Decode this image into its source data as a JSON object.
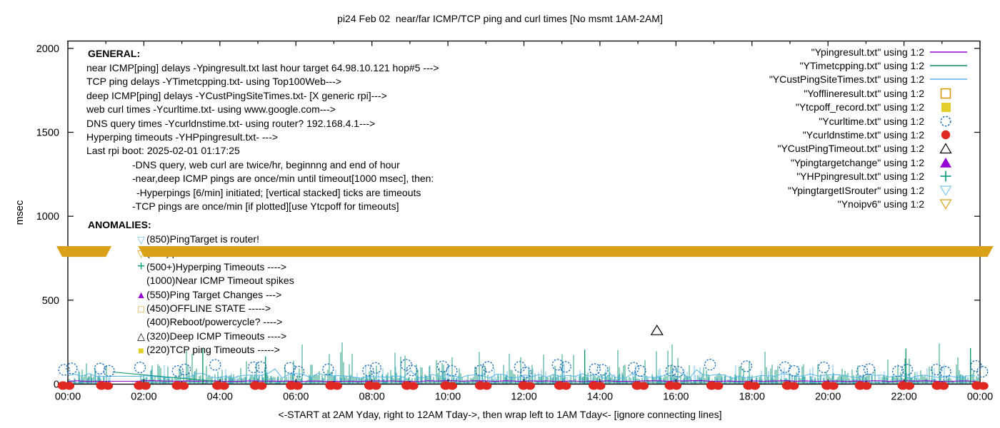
{
  "general": {
    "heading": "GENERAL:",
    "lines": [
      {
        "indent": 0,
        "text": "near ICMP[ping] delays -Ypingresult.txt last hour target 64.98.10.121 hop#5 --->"
      },
      {
        "indent": 0,
        "text": "TCP ping delays -YTimetcpping.txt- using Top100Web--->"
      },
      {
        "indent": 0,
        "text": "deep ICMP[ping] delays -YCustPingSiteTimes.txt- [X generic rpi]--->"
      },
      {
        "indent": 0,
        "text": "web curl times -Ycurltime.txt- using www.google.com--->"
      },
      {
        "indent": 0,
        "text": "DNS query times -Ycurldnstime.txt- using router? 192.168.4.1--->"
      },
      {
        "indent": 0,
        "text": "Hyperping timeouts -YHPpingresult.txt- --->"
      },
      {
        "indent": 0,
        "text": "Last rpi boot: 2025-02-01 01:17:25"
      },
      {
        "indent": 64,
        "text": "-DNS query, web curl are twice/hr, beginnng and end of hour"
      },
      {
        "indent": 64,
        "text": "-near,deep ICMP pings are once/min until timeout[1000 msec], then:"
      },
      {
        "indent": 70,
        "text": "-Hyperpings [6/min] initiated; [vertical stacked] ticks are timeouts"
      },
      {
        "indent": 64,
        "text": "-TCP pings are once/min [if plotted][use Ytcpoff for timeouts]"
      }
    ]
  },
  "anomalies": {
    "heading": "ANOMALIES:",
    "items": [
      {
        "marker": "tri-down-open",
        "color": "#79C7E8",
        "label": "(850)PingTarget is router!"
      },
      {
        "marker": "tri-down-open",
        "color": "#DAA017",
        "label": "(785)ipv6 failed --->"
      },
      {
        "marker": "plus",
        "color": "#009977",
        "label": "(500+)Hyperping Timeouts ---->"
      },
      {
        "marker": "none",
        "color": "#000000",
        "label": "(1000)Near ICMP Timeout spikes"
      },
      {
        "marker": "tri-up-filled",
        "color": "#9400D3",
        "label": "(550)Ping Target Changes --->"
      },
      {
        "marker": "square-open",
        "color": "#DB9500",
        "label": "(450)OFFLINE STATE ----->"
      },
      {
        "marker": "none",
        "color": "#000000",
        "label": "(400)Reboot/powercycle? ---->"
      },
      {
        "marker": "tri-up-open",
        "color": "#000000",
        "label": "(320)Deep ICMP Timeouts ---->"
      },
      {
        "marker": "square-filled",
        "color": "#E2CF2E",
        "label": "(220)TCP ping Timeouts ----->"
      }
    ]
  },
  "chart_data": {
    "type": "line",
    "title": "pi24 Feb 02  near/far ICMP/TCP ping and curl times [No msmt 1AM-2AM]",
    "xlabel_caption": "<-START at 2AM Yday, right to 12AM Tday->, then wrap left to 1AM Tday<- [ignore connecting lines]",
    "ylabel": "msec",
    "ylim": [
      0,
      2000
    ],
    "y_ticks": [
      0,
      500,
      1000,
      1500,
      2000
    ],
    "x_range_hours": [
      0,
      24
    ],
    "x_major_tick_hours": 2,
    "x_minor_tick_hours": 1,
    "x_tick_labels": [
      "00:00",
      "02:00",
      "04:00",
      "06:00",
      "08:00",
      "10:00",
      "12:00",
      "14:00",
      "16:00",
      "18:00",
      "20:00",
      "22:00",
      "00:00"
    ],
    "grid": false,
    "legend_position": "top-right",
    "legend": [
      {
        "label": "\"Ypingresult.txt\" using 1:2",
        "sample": "line",
        "color": "#9400D3"
      },
      {
        "label": "\"YTimetcpping.txt\" using 1:2",
        "sample": "line",
        "color": "#008F6B"
      },
      {
        "label": "\"YCustPingSiteTimes.txt\" using 1:2",
        "sample": "line",
        "color": "#56B4E9"
      },
      {
        "label": "\"Yofflineresult.txt\" using 1:2",
        "sample": "square-open",
        "color": "#DB9500"
      },
      {
        "label": "\"Ytcpoff_record.txt\" using 1:2",
        "sample": "square-filled",
        "color": "#E2CF2E"
      },
      {
        "label": "\"Ycurltime.txt\" using 1:2",
        "sample": "circle-dashed",
        "color": "#1C6EB8"
      },
      {
        "label": "\"Ycurldnstime.txt\" using 1:2",
        "sample": "circle-filled",
        "color": "#DE2821"
      },
      {
        "label": "\"YCustPingTimeout.txt\" using 1:2",
        "sample": "tri-up-open",
        "color": "#000000"
      },
      {
        "label": "\"Ypingtargetchange\" using 1:2",
        "sample": "tri-up-filled",
        "color": "#9400D3"
      },
      {
        "label": "\"YHPpingresult.txt\" using 1:2",
        "sample": "plus",
        "color": "#009977"
      },
      {
        "label": "\"YpingtargetISrouter\" using 1:2",
        "sample": "tri-down-open",
        "color": "#79C7E8"
      },
      {
        "label": "\"Ynoipv6\" using 1:2",
        "sample": "tri-down-open",
        "color": "#DAA017"
      }
    ],
    "features": {
      "noipv6_band": {
        "series": "Ynoipv6",
        "band_msec": [
          758,
          822
        ],
        "gap_hours": [
          1.15,
          1.85
        ],
        "x_extent_hours": [
          -0.3,
          24.35
        ],
        "color": "#DAA017"
      },
      "no_measurement_gap_hours": [
        1.1,
        1.9
      ],
      "dns_query_dots": {
        "series": "Ycurldnstime.txt",
        "interval_hours": 1,
        "value_msec": 3,
        "color": "#DE2821"
      },
      "web_curl_circles": {
        "series": "Ycurltime.txt",
        "interval_hours": 1,
        "value_msec_range": [
          55,
          110
        ],
        "color": "#1C6EB8"
      },
      "near_ping_line": {
        "series": "Ypingresult.txt",
        "value_msec": 15,
        "color": "#9400D3"
      },
      "deep_ping_band": {
        "series": "YCustPingSiteTimes.txt",
        "value_msec_range": [
          20,
          60
        ],
        "color": "#56B4E9"
      },
      "tcp_ping_noise": {
        "series": "YTimetcpping.txt",
        "value_msec_range": [
          5,
          120
        ],
        "color": "#008F6B"
      },
      "tcp_spikes": [
        {
          "hour": 3.55,
          "msec": 210
        },
        {
          "hour": 5.2,
          "msec": 165
        },
        {
          "hour": 13.6,
          "msec": 205
        },
        {
          "hour": 22.05,
          "msec": 212
        },
        {
          "hour": 23.75,
          "msec": 215
        }
      ],
      "deep_icmp_timeout_marker": {
        "series": "YCustPingTimeout.txt",
        "hour": 15.5,
        "msec": 320,
        "color": "#000000"
      }
    }
  }
}
